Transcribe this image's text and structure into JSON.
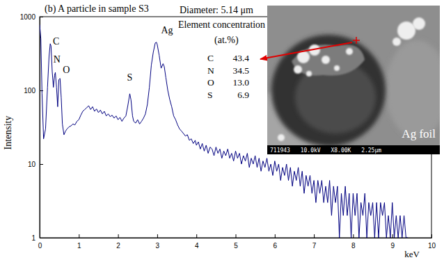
{
  "chart_data": {
    "type": "line",
    "title": "(b) A particle in sample S3",
    "x_label": "keV",
    "y_label": "Intensity",
    "log": "y",
    "xlim": [
      0,
      10
    ],
    "xticks": [
      0,
      1,
      2,
      3,
      4,
      5,
      6,
      7,
      8,
      9,
      10
    ],
    "ylim": [
      1,
      1000
    ],
    "yticks": [
      1,
      10,
      100,
      1000
    ],
    "x": [
      0,
      0.03,
      0.06,
      0.1,
      0.15,
      0.2,
      0.24,
      0.27,
      0.29,
      0.32,
      0.35,
      0.38,
      0.4,
      0.43,
      0.46,
      0.49,
      0.52,
      0.55,
      0.58,
      0.62,
      0.66,
      0.7,
      0.75,
      0.8,
      0.85,
      0.9,
      0.95,
      1,
      1.05,
      1.1,
      1.15,
      1.2,
      1.25,
      1.3,
      1.35,
      1.4,
      1.45,
      1.5,
      1.55,
      1.6,
      1.65,
      1.7,
      1.75,
      1.8,
      1.85,
      1.9,
      1.95,
      2,
      2.05,
      2.1,
      2.15,
      2.2,
      2.25,
      2.3,
      2.33,
      2.37,
      2.4,
      2.45,
      2.5,
      2.55,
      2.6,
      2.65,
      2.7,
      2.75,
      2.8,
      2.85,
      2.9,
      2.95,
      2.98,
      3,
      3.05,
      3.1,
      3.15,
      3.18,
      3.22,
      3.27,
      3.32,
      3.37,
      3.42,
      3.47,
      3.52,
      3.57,
      3.62,
      3.67,
      3.72,
      3.77,
      3.82,
      3.87,
      3.92,
      3.97,
      4,
      4.05,
      4.1,
      4.15,
      4.2,
      4.25,
      4.3,
      4.35,
      4.4,
      4.45,
      4.5,
      4.55,
      4.6,
      4.65,
      4.7,
      4.75,
      4.8,
      4.85,
      4.9,
      4.95,
      5,
      5.05,
      5.1,
      5.15,
      5.2,
      5.25,
      5.3,
      5.35,
      5.4,
      5.45,
      5.5,
      5.55,
      5.6,
      5.65,
      5.7,
      5.75,
      5.8,
      5.85,
      5.9,
      5.95,
      6,
      6.05,
      6.1,
      6.15,
      6.2,
      6.25,
      6.3,
      6.35,
      6.4,
      6.45,
      6.5,
      6.55,
      6.6,
      6.65,
      6.7,
      6.75,
      6.8,
      6.85,
      6.9,
      6.95,
      7,
      7.05,
      7.1,
      7.15,
      7.2,
      7.25,
      7.3,
      7.35,
      7.4,
      7.45,
      7.5,
      7.55,
      7.6,
      7.65,
      7.7,
      7.75,
      7.8,
      7.85,
      7.9,
      7.95,
      8,
      8.05,
      8.1,
      8.15,
      8.2,
      8.25,
      8.3,
      8.35,
      8.4,
      8.45,
      8.5,
      8.55,
      8.6,
      8.65,
      8.7,
      8.75,
      8.8,
      8.85,
      8.9,
      8.95,
      9,
      9.05,
      9.1,
      9.15,
      9.2,
      9.25,
      9.3,
      9.35,
      9.4
    ],
    "series": [
      {
        "color": "#000080",
        "values": [
          780,
          500,
          90,
          22,
          30,
          110,
          290,
          430,
          400,
          180,
          110,
          160,
          175,
          110,
          60,
          140,
          145,
          80,
          35,
          25,
          28,
          30,
          32,
          33,
          35,
          34,
          38,
          40,
          46,
          52,
          55,
          58,
          62,
          55,
          60,
          52,
          56,
          50,
          54,
          48,
          52,
          45,
          48,
          44,
          46,
          42,
          45,
          40,
          43,
          38,
          42,
          45,
          62,
          90,
          75,
          45,
          38,
          36,
          40,
          35,
          38,
          42,
          48,
          65,
          110,
          220,
          330,
          440,
          450,
          420,
          300,
          200,
          230,
          210,
          150,
          100,
          75,
          60,
          45,
          40,
          34,
          30,
          28,
          26,
          24,
          25,
          21,
          22,
          19,
          21,
          18,
          20,
          16,
          19,
          15,
          18,
          14,
          17,
          16,
          13,
          17,
          14,
          16,
          12,
          15,
          13,
          16,
          12,
          14,
          11,
          15,
          12,
          14,
          10,
          13,
          11,
          14,
          9,
          12,
          10,
          13,
          9,
          12,
          8,
          11,
          9,
          12,
          8,
          10,
          7,
          11,
          8,
          10,
          6,
          9,
          7,
          10,
          6,
          9,
          5,
          8,
          6,
          9,
          5,
          8,
          4,
          7,
          5,
          7,
          4,
          6,
          3,
          6,
          4,
          6,
          3,
          5,
          3,
          6,
          2,
          5,
          3,
          5,
          1,
          4,
          2,
          5,
          2,
          4,
          1,
          4,
          2,
          4,
          1,
          3,
          2,
          4,
          1,
          3,
          2,
          3,
          1,
          3,
          1,
          3,
          2,
          3,
          1,
          2,
          1,
          3,
          1,
          2,
          1,
          2,
          1,
          2,
          1,
          1
        ]
      }
    ],
    "annotations": [
      {
        "text": "C",
        "x": 0.42,
        "y": 460
      },
      {
        "text": "N",
        "x": 0.44,
        "y": 265
      },
      {
        "text": "O",
        "x": 0.68,
        "y": 190
      },
      {
        "text": "S",
        "x": 2.3,
        "y": 150
      },
      {
        "text": "Ag",
        "x": 3.25,
        "y": 660
      }
    ]
  },
  "particle_info": {
    "diameter": "Diameter: 5.14 μm",
    "heading": "Element concentration",
    "unit": "(at.%)",
    "elements": [
      "C",
      "N",
      "O",
      "S"
    ],
    "values": [
      43.4,
      34.5,
      13.0,
      6.9
    ]
  },
  "inset": {
    "label": "Ag foil",
    "caption": "711943 10.0kV X8.00K 2.25μm"
  }
}
